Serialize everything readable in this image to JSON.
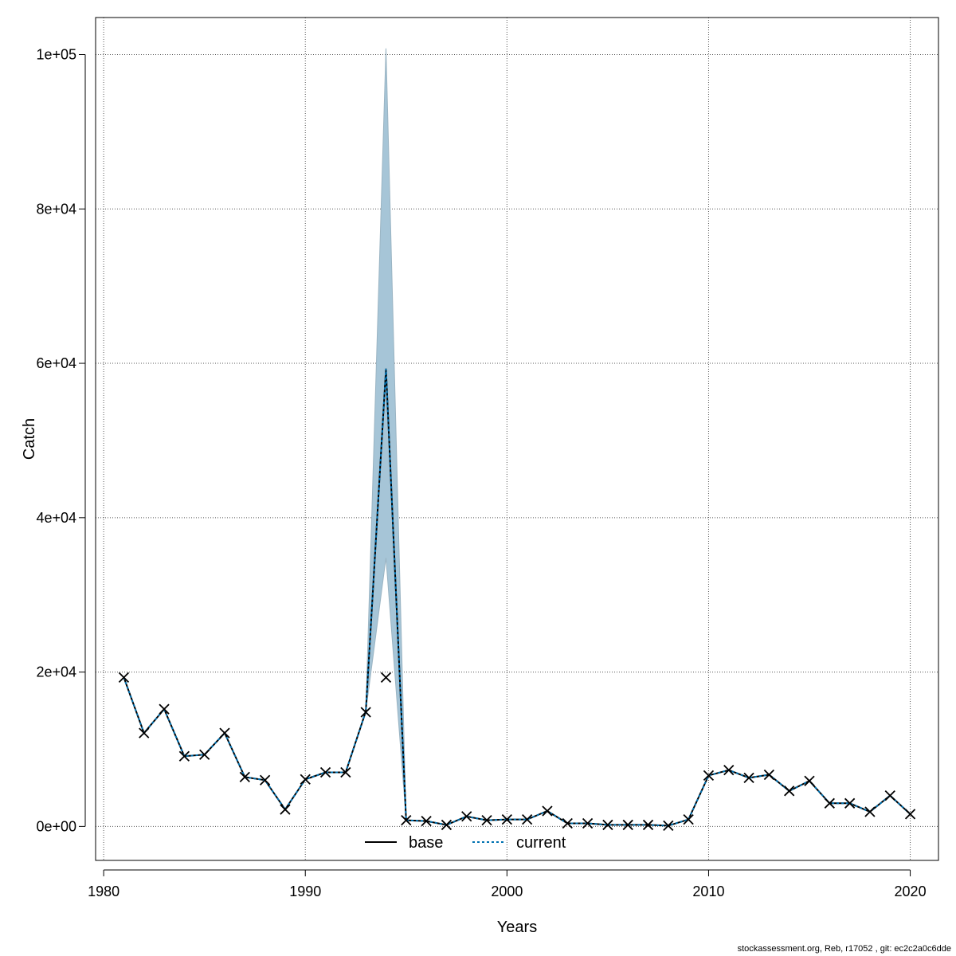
{
  "chart_data": {
    "type": "line",
    "title": "",
    "xlabel": "Years",
    "ylabel": "Catch",
    "xlim": [
      1979.6,
      2021.4
    ],
    "ylim": [
      -4400,
      104800
    ],
    "x_ticks": [
      1980,
      1990,
      2000,
      2010,
      2020
    ],
    "x_tick_labels": [
      "1980",
      "1990",
      "2000",
      "2010",
      "2020"
    ],
    "y_ticks": [
      0,
      20000,
      40000,
      60000,
      80000,
      100000
    ],
    "y_tick_labels": [
      "0e+00",
      "2e+04",
      "4e+04",
      "6e+04",
      "8e+04",
      "1e+05"
    ],
    "grid": true,
    "legend_position": "bottom-center",
    "x": [
      1981,
      1982,
      1983,
      1984,
      1985,
      1986,
      1987,
      1988,
      1989,
      1990,
      1991,
      1992,
      1993,
      1994,
      1995,
      1996,
      1997,
      1998,
      1999,
      2000,
      2001,
      2002,
      2003,
      2004,
      2005,
      2006,
      2007,
      2008,
      2009,
      2010,
      2011,
      2012,
      2013,
      2014,
      2015,
      2016,
      2017,
      2018,
      2019,
      2020
    ],
    "series": [
      {
        "name": "base",
        "color": "#000000",
        "line_style": "solid",
        "values": [
          19300,
          12100,
          15200,
          9100,
          9300,
          12100,
          6400,
          6000,
          2200,
          6100,
          7000,
          7000,
          14900,
          59300,
          800,
          700,
          200,
          1300,
          800,
          900,
          900,
          2000,
          400,
          400,
          200,
          200,
          200,
          100,
          900,
          6600,
          7300,
          6300,
          6700,
          4600,
          5900,
          3000,
          3000,
          1900,
          4000,
          1600
        ]
      },
      {
        "name": "current",
        "color": "#0072B2",
        "line_style": "dashed",
        "values": [
          19300,
          12100,
          15200,
          9100,
          9300,
          12100,
          6400,
          6000,
          2200,
          6100,
          7000,
          7000,
          14900,
          59300,
          800,
          700,
          200,
          1300,
          800,
          900,
          900,
          2000,
          400,
          400,
          200,
          200,
          200,
          100,
          900,
          6600,
          7300,
          6300,
          6700,
          4600,
          5900,
          3000,
          3000,
          1900,
          4000,
          1600
        ]
      }
    ],
    "confidence_band": {
      "color": "#a6c5d7",
      "lower": [
        19300,
        12100,
        15200,
        9100,
        9300,
        12100,
        6400,
        6000,
        2200,
        6100,
        7000,
        7000,
        14900,
        34800,
        800,
        700,
        200,
        1300,
        800,
        900,
        900,
        2000,
        400,
        400,
        200,
        200,
        200,
        100,
        900,
        6600,
        7300,
        6300,
        6700,
        4600,
        5900,
        3000,
        3000,
        1900,
        4000,
        1600
      ],
      "upper": [
        19300,
        12100,
        15200,
        9100,
        9300,
        12100,
        6400,
        6000,
        2200,
        6100,
        7000,
        7000,
        14900,
        100800,
        800,
        700,
        200,
        1300,
        800,
        900,
        900,
        2000,
        400,
        400,
        200,
        200,
        200,
        100,
        900,
        6600,
        7300,
        6300,
        6700,
        4600,
        5900,
        3000,
        3000,
        1900,
        4000,
        1600
      ]
    },
    "observed": {
      "marker": "x",
      "values": [
        19300,
        12100,
        15200,
        9100,
        9300,
        12100,
        6400,
        6000,
        2200,
        6100,
        7000,
        7000,
        14800,
        19300,
        800,
        700,
        200,
        1300,
        800,
        900,
        900,
        2000,
        400,
        400,
        200,
        200,
        200,
        100,
        900,
        6600,
        7300,
        6300,
        6700,
        4600,
        5900,
        3000,
        3000,
        1900,
        4000,
        1600
      ]
    }
  },
  "footer": "stockassessment.org, Reb, r17052 , git: ec2c2a0c6dde"
}
